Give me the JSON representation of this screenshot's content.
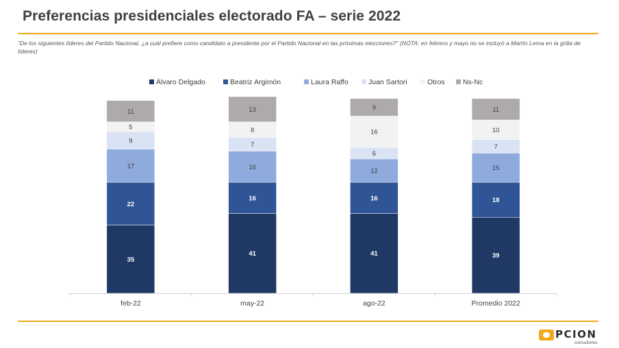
{
  "header": {
    "title": "Preferencias presidenciales electorado FA – serie 2022",
    "note": "“De los siguientes líderes del Partido Nacional, ¿a cuál prefiere como candidato a presidente por el Partido Nacional en las próximas elecciones?” (NOTA: en febrero y mayo no se incluyó a Martín Lema en la grilla de líderes)"
  },
  "logo": {
    "word": "PCION",
    "sub": "consultores"
  },
  "chart_data": {
    "type": "bar",
    "stacked": true,
    "legend_position": "top",
    "grid": false,
    "categories": [
      "feb-22",
      "may-22",
      "ago-22",
      "Promedio 2022"
    ],
    "series": [
      {
        "name": "Álvaro Delgado",
        "color": "#1f3864",
        "label_color": "#ffffff",
        "values": [
          35,
          41,
          41,
          39
        ]
      },
      {
        "name": "Beatriz Argimón",
        "color": "#2f5597",
        "label_color": "#ffffff",
        "values": [
          22,
          16,
          16,
          18
        ]
      },
      {
        "name": "Laura Raffo",
        "color": "#8faadc",
        "label_color": "#404040",
        "values": [
          17,
          16,
          12,
          15
        ]
      },
      {
        "name": "Juan Sartori",
        "color": "#dae3f3",
        "label_color": "#404040",
        "values": [
          9,
          7,
          6,
          7
        ]
      },
      {
        "name": "Otros",
        "color": "#f2f2f2",
        "label_color": "#404040",
        "values": [
          5,
          8,
          16,
          10
        ]
      },
      {
        "name": "Ns-Nc",
        "color": "#aeaaaa",
        "label_color": "#404040",
        "values": [
          11,
          13,
          9,
          11
        ]
      }
    ]
  }
}
